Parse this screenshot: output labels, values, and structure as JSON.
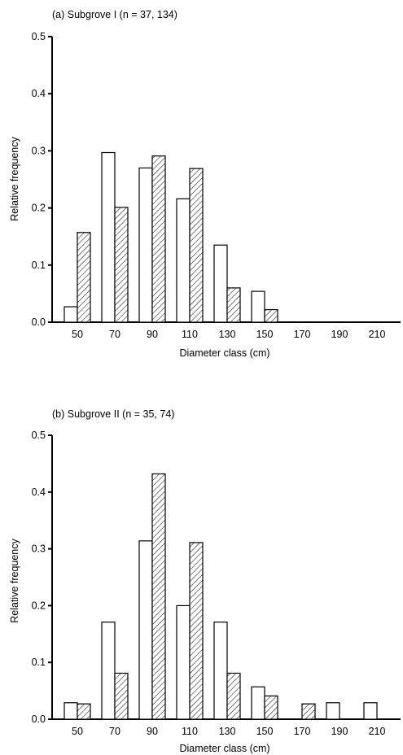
{
  "chart_data": [
    {
      "type": "bar",
      "title": "(a) Subgrove I (n = 37, 134)",
      "xlabel": "Diameter class (cm)",
      "ylabel": "Relative frequency",
      "categories": [
        "50",
        "70",
        "90",
        "110",
        "130",
        "150",
        "170",
        "190",
        "210"
      ],
      "series": [
        {
          "values": [
            0.027,
            0.297,
            0.27,
            0.216,
            0.135,
            0.054,
            0,
            0,
            0
          ],
          "fill": "#ffffff"
        },
        {
          "values": [
            0.157,
            0.201,
            0.291,
            0.269,
            0.06,
            0.022,
            0,
            0,
            0
          ],
          "fill": "hatch"
        }
      ],
      "ylim": [
        0,
        0.5
      ],
      "yticks": [
        "0.0",
        "0.1",
        "0.2",
        "0.3",
        "0.4",
        "0.5"
      ]
    },
    {
      "type": "bar",
      "title": "(b) Subgrove II (n = 35, 74)",
      "xlabel": "Diameter class (cm)",
      "ylabel": "Relative frequency",
      "categories": [
        "50",
        "70",
        "90",
        "110",
        "130",
        "150",
        "170",
        "190",
        "210"
      ],
      "series": [
        {
          "values": [
            0.029,
            0.171,
            0.314,
            0.2,
            0.171,
            0.057,
            0,
            0.029,
            0.029
          ],
          "fill": "#ffffff"
        },
        {
          "values": [
            0.027,
            0.081,
            0.432,
            0.311,
            0.081,
            0.041,
            0.027,
            0,
            0
          ],
          "fill": "hatch"
        }
      ],
      "ylim": [
        0,
        0.5
      ],
      "yticks": [
        "0.0",
        "0.1",
        "0.2",
        "0.3",
        "0.4",
        "0.5"
      ]
    }
  ]
}
